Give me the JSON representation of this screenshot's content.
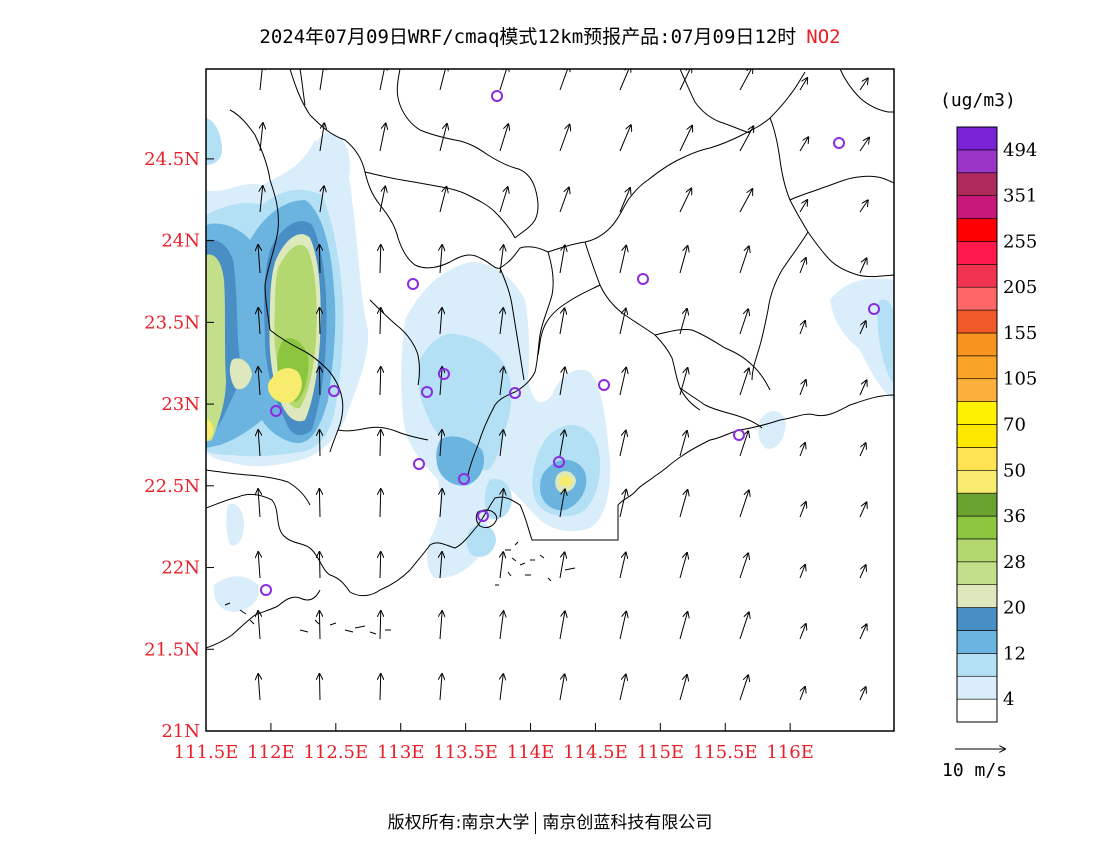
{
  "header": {
    "title": "2024年07月09日WRF/cmaq模式12km预报产品:07月09日12时",
    "pollutant": "NO2"
  },
  "footer": {
    "copyright": "版权所有:南京大学",
    "company": "南京创蓝科技有限公司"
  },
  "map": {
    "lat_labels": [
      "24.5N",
      "24N",
      "23.5N",
      "23N",
      "22.5N",
      "22N",
      "21.5N",
      "21N"
    ],
    "lon_labels": [
      "111.5E",
      "112E",
      "112.5E",
      "113E",
      "113.5E",
      "114E",
      "114.5E",
      "115E",
      "115.5E",
      "116E"
    ],
    "label_color": "#e8202a",
    "lat_range": [
      21,
      25.05
    ],
    "lon_range": [
      111.5,
      116.8
    ]
  },
  "legend": {
    "units": "(ug/m3)",
    "levels": [
      {
        "label": "",
        "color": "#ffffff"
      },
      {
        "label": "4",
        "color": "#d9eefa"
      },
      {
        "label": "",
        "color": "#b3e0f5"
      },
      {
        "label": "12",
        "color": "#6cb4e0"
      },
      {
        "label": "",
        "color": "#4a8ec6"
      },
      {
        "label": "20",
        "color": "#dde9bd"
      },
      {
        "label": "",
        "color": "#c3df8a"
      },
      {
        "label": "28",
        "color": "#b2d86f"
      },
      {
        "label": "",
        "color": "#8cc63f"
      },
      {
        "label": "36",
        "color": "#6aa22f"
      },
      {
        "label": "",
        "color": "#f7ec6d"
      },
      {
        "label": "50",
        "color": "#ffe352"
      },
      {
        "label": "",
        "color": "#ffe800"
      },
      {
        "label": "70",
        "color": "#fff200"
      },
      {
        "label": "",
        "color": "#fbb03b"
      },
      {
        "label": "105",
        "color": "#f9a327"
      },
      {
        "label": "",
        "color": "#f7931e"
      },
      {
        "label": "155",
        "color": "#f05a28"
      },
      {
        "label": "",
        "color": "#ff6666"
      },
      {
        "label": "205",
        "color": "#f0344f"
      },
      {
        "label": "",
        "color": "#ff1a4b"
      },
      {
        "label": "255",
        "color": "#ff0000"
      },
      {
        "label": "",
        "color": "#c8197a"
      },
      {
        "label": "351",
        "color": "#ad2a5c"
      },
      {
        "label": "",
        "color": "#9a35c8"
      },
      {
        "label": "494",
        "color": "#7a22d6"
      }
    ]
  },
  "wind_reference": {
    "label": "10 m/s"
  },
  "stations_color": "#8a2be2"
}
